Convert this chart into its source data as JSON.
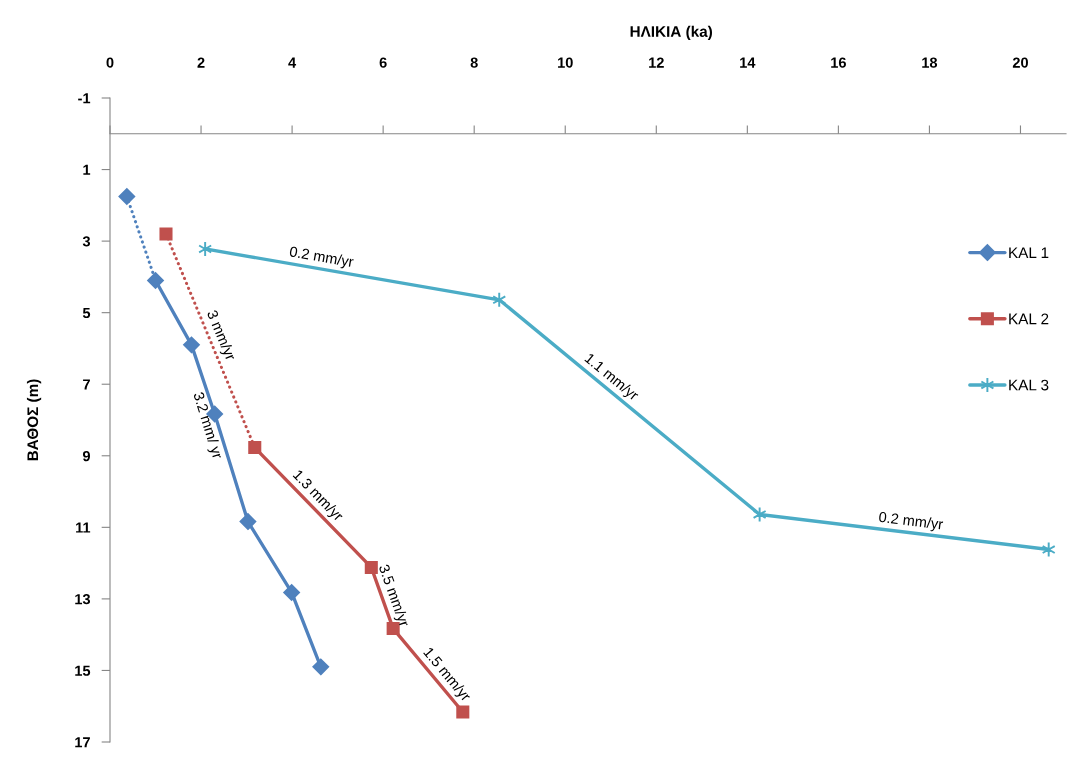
{
  "chart_data": {
    "type": "line",
    "xlabel": "ΗΛΙΚΙΑ (ka)",
    "ylabel": "ΒΑΘΟΣ (m)",
    "xlim": [
      0,
      21
    ],
    "xticks": [
      0,
      2,
      4,
      6,
      8,
      10,
      12,
      14,
      16,
      18,
      20
    ],
    "ylim": [
      17,
      -1
    ],
    "yticks": [
      -1,
      1,
      3,
      5,
      7,
      9,
      11,
      13,
      15,
      17
    ],
    "legend": "right",
    "series": [
      {
        "color": "#4f81bd",
        "line_style": "dotted",
        "x": [
          0.37,
          1.0
        ],
        "values": [
          1.75,
          4.1
        ]
      },
      {
        "color": "#c0504d",
        "line_style": "dotted",
        "x": [
          1.23,
          3.18
        ],
        "values": [
          2.8,
          8.77
        ]
      },
      {
        "name": "KAL 1",
        "color": "#4f81bd",
        "marker": "diamond",
        "line_style": "solid",
        "x": [
          0.37,
          null,
          1.0,
          1.79,
          2.3,
          3.03,
          3.99,
          4.63
        ],
        "values": [
          1.75,
          null,
          4.1,
          5.9,
          7.83,
          10.84,
          12.82,
          14.9
        ]
      },
      {
        "name": "KAL 2",
        "color": "#c0504d",
        "marker": "square",
        "line_style": "solid",
        "x": [
          1.23,
          null,
          3.18,
          5.74,
          6.22,
          7.75
        ],
        "values": [
          2.8,
          null,
          8.77,
          12.12,
          13.83,
          16.16
        ]
      },
      {
        "name": "KAL 3",
        "color": "#4bacc6",
        "marker": "cross",
        "line_style": "solid",
        "x": [
          2.09,
          8.55,
          14.27,
          20.62
        ],
        "values": [
          3.22,
          4.64,
          10.64,
          11.62
        ]
      }
    ],
    "annotations": [
      {
        "text": "0.2 mm/yr",
        "x": 4.6,
        "y": 3.77
      },
      {
        "text": "1.1 mm/yr",
        "x": 10.85,
        "y": 7.05
      },
      {
        "text": "0.2 mm/yr",
        "x": 17.56,
        "y": 11.15
      },
      {
        "text": "3 mm/yr",
        "x": 2.2,
        "y": 5.76
      },
      {
        "text": "3.2 mm/ yr",
        "x": 2.36,
        "y": 8.07
      },
      {
        "text": "1.3 mm/yr",
        "x": 4.38,
        "y": 10.34
      },
      {
        "text": "3.5 mm/yr",
        "x": 5.99,
        "y": 13.02
      },
      {
        "text": "1.5 mm/yr",
        "x": 7.2,
        "y": 15.32
      }
    ]
  }
}
